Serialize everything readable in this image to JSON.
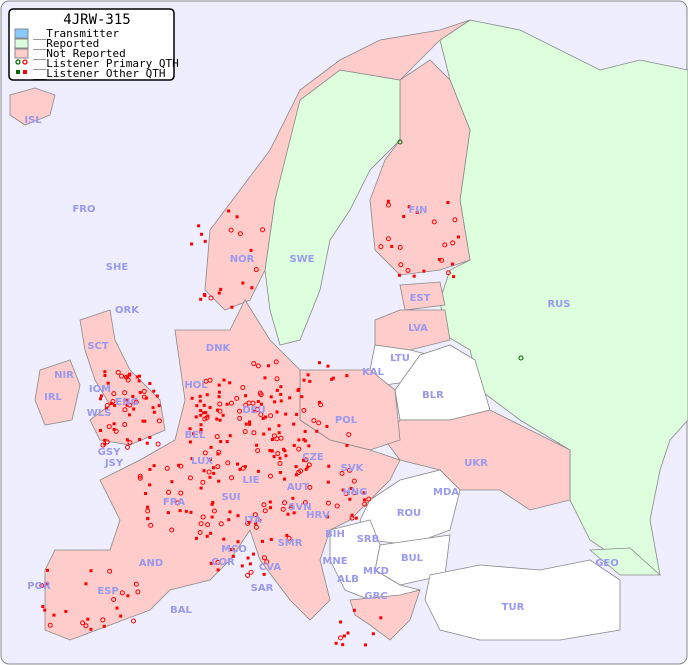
{
  "title": "4JRW-315",
  "colors": {
    "sea": "#eeeeff",
    "transmitter": "#88ccff",
    "reported": "#ddffdd",
    "not_reported": "#ffcccc",
    "none": "#ffffff",
    "primary": "#ff0000",
    "other": "#ff0000",
    "label": "#9999ee"
  },
  "legend": [
    {
      "label": "__Transmitter",
      "icon": "blue-swatch"
    },
    {
      "label": "__Reported",
      "icon": "green-swatch"
    },
    {
      "label": "__Not Reported",
      "icon": "pink-swatch"
    },
    {
      "label": "__Listener Primary QTH",
      "icon": "circle-markers"
    },
    {
      "label": "__Listener Other QTH",
      "icon": "square-markers"
    }
  ],
  "countries": [
    "ISL",
    "FRO",
    "SHE",
    "ORK",
    "NOR",
    "SWE",
    "FIN",
    "RUS",
    "EST",
    "LVA",
    "LTU",
    "KAL",
    "BLR",
    "DNK",
    "HOL",
    "BEL",
    "DEU",
    "POL",
    "UKR",
    "IRL",
    "NIR",
    "IOM",
    "SCT",
    "WLS",
    "ENG",
    "GSY",
    "JSY",
    "LUX",
    "CZE",
    "SVK",
    "HNG",
    "AUT",
    "MDA",
    "ROU",
    "FRA",
    "SUI",
    "LIE",
    "SVN",
    "HRV",
    "BIH",
    "SRB",
    "ITA",
    "MCO",
    "COR",
    "SMR",
    "MNE",
    "ALB",
    "MKD",
    "BUL",
    "GRC",
    "TUR",
    "GEO",
    "AND",
    "POR",
    "ESP",
    "BAL",
    "SAR",
    "CVA"
  ]
}
